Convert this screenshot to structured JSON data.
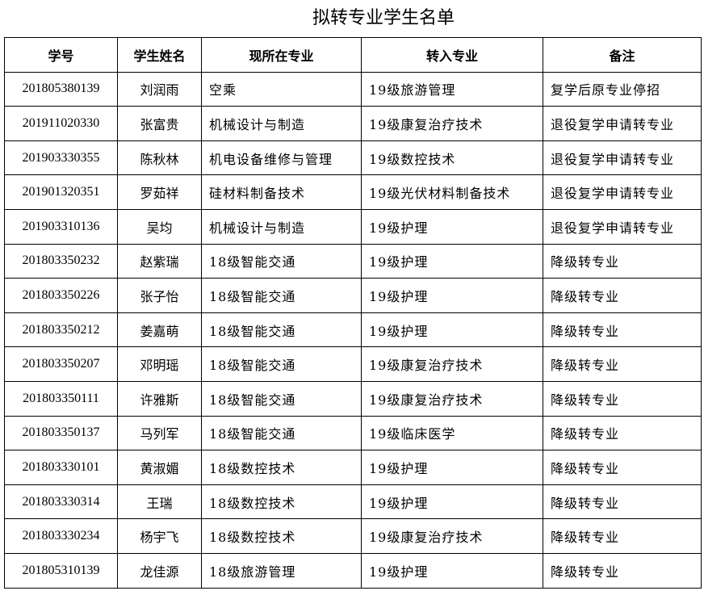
{
  "title": "拟转专业学生名单",
  "headers": [
    "学号",
    "学生姓名",
    "现所在专业",
    "转入专业",
    "备注"
  ],
  "rows": [
    [
      "201805380139",
      "刘润雨",
      "空乘",
      "19级旅游管理",
      "复学后原专业停招"
    ],
    [
      "201911020330",
      "张富贵",
      "机械设计与制造",
      "19级康复治疗技术",
      "退役复学申请转专业"
    ],
    [
      "201903330355",
      "陈秋林",
      "机电设备维修与管理",
      "19级数控技术",
      "退役复学申请转专业"
    ],
    [
      "201901320351",
      "罗茹祥",
      "硅材料制备技术",
      "19级光伏材料制备技术",
      "退役复学申请转专业"
    ],
    [
      "201903310136",
      "吴均",
      "机械设计与制造",
      "19级护理",
      "退役复学申请转专业"
    ],
    [
      "201803350232",
      "赵紫瑞",
      "18级智能交通",
      "19级护理",
      "降级转专业"
    ],
    [
      "201803350226",
      "张子怡",
      "18级智能交通",
      "19级护理",
      "降级转专业"
    ],
    [
      "201803350212",
      "姜嘉萌",
      "18级智能交通",
      "19级护理",
      "降级转专业"
    ],
    [
      "201803350207",
      "邓明瑶",
      "18级智能交通",
      "19级康复治疗技术",
      "降级转专业"
    ],
    [
      "201803350111",
      "许雅斯",
      "18级智能交通",
      "19级康复治疗技术",
      "降级转专业"
    ],
    [
      "201803350137",
      "马列军",
      "18级智能交通",
      "19级临床医学",
      "降级转专业"
    ],
    [
      "201803330101",
      "黄淑媚",
      "18级数控技术",
      "19级护理",
      "降级转专业"
    ],
    [
      "201803330314",
      "王瑞",
      "18级数控技术",
      "19级护理",
      "降级转专业"
    ],
    [
      "201803330234",
      "杨宇飞",
      "18级数控技术",
      "19级康复治疗技术",
      "降级转专业"
    ],
    [
      "201805310139",
      "龙佳源",
      "18级旅游管理",
      "19级护理",
      "降级转专业"
    ]
  ]
}
